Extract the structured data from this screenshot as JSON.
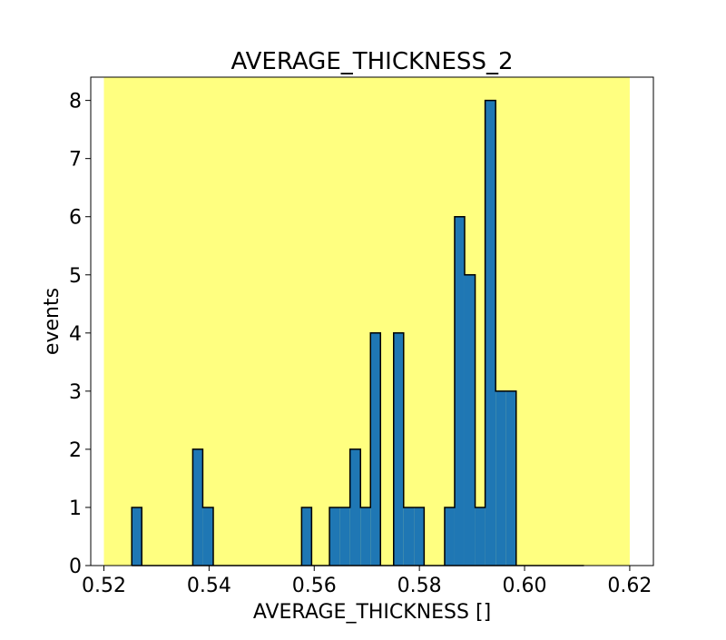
{
  "chart_data": {
    "type": "bar",
    "title": "AVERAGE_THICKNESS_2",
    "xlabel": "AVERAGE_THICKNESS []",
    "ylabel": "events",
    "xlim": [
      0.5175,
      0.6245
    ],
    "ylim": [
      0,
      8.4
    ],
    "xticks": [
      0.52,
      0.54,
      0.56,
      0.58,
      0.6,
      0.62
    ],
    "xtick_labels": [
      "0.52",
      "0.54",
      "0.56",
      "0.58",
      "0.60",
      "0.62"
    ],
    "yticks": [
      0,
      1,
      2,
      3,
      4,
      5,
      6,
      7,
      8
    ],
    "ytick_labels": [
      "0",
      "1",
      "2",
      "3",
      "4",
      "5",
      "6",
      "7",
      "8"
    ],
    "grid": false,
    "highlight_band": {
      "x0": 0.52,
      "x1": 0.62
    },
    "colors": {
      "bar_fill": "#1f77b4",
      "bar_edge": "#000000",
      "band": "#ffff80",
      "background": "#ffffff"
    },
    "bins": [
      {
        "x0": 0.5253,
        "x1": 0.5272,
        "count": 1
      },
      {
        "x0": 0.5369,
        "x1": 0.5388,
        "count": 2
      },
      {
        "x0": 0.5388,
        "x1": 0.5408,
        "count": 1
      },
      {
        "x0": 0.5576,
        "x1": 0.5595,
        "count": 1
      },
      {
        "x0": 0.5629,
        "x1": 0.5649,
        "count": 1
      },
      {
        "x0": 0.5649,
        "x1": 0.5668,
        "count": 1
      },
      {
        "x0": 0.5668,
        "x1": 0.5688,
        "count": 2
      },
      {
        "x0": 0.5688,
        "x1": 0.5707,
        "count": 1
      },
      {
        "x0": 0.5707,
        "x1": 0.5726,
        "count": 4
      },
      {
        "x0": 0.5751,
        "x1": 0.577,
        "count": 4
      },
      {
        "x0": 0.577,
        "x1": 0.579,
        "count": 1
      },
      {
        "x0": 0.579,
        "x1": 0.5809,
        "count": 1
      },
      {
        "x0": 0.5848,
        "x1": 0.5867,
        "count": 1
      },
      {
        "x0": 0.5867,
        "x1": 0.5886,
        "count": 6
      },
      {
        "x0": 0.5886,
        "x1": 0.5906,
        "count": 5
      },
      {
        "x0": 0.5906,
        "x1": 0.5925,
        "count": 1
      },
      {
        "x0": 0.5925,
        "x1": 0.5945,
        "count": 8
      },
      {
        "x0": 0.5945,
        "x1": 0.5964,
        "count": 3
      },
      {
        "x0": 0.5964,
        "x1": 0.5984,
        "count": 3
      }
    ],
    "baseline_extends_to": 0.6113
  }
}
